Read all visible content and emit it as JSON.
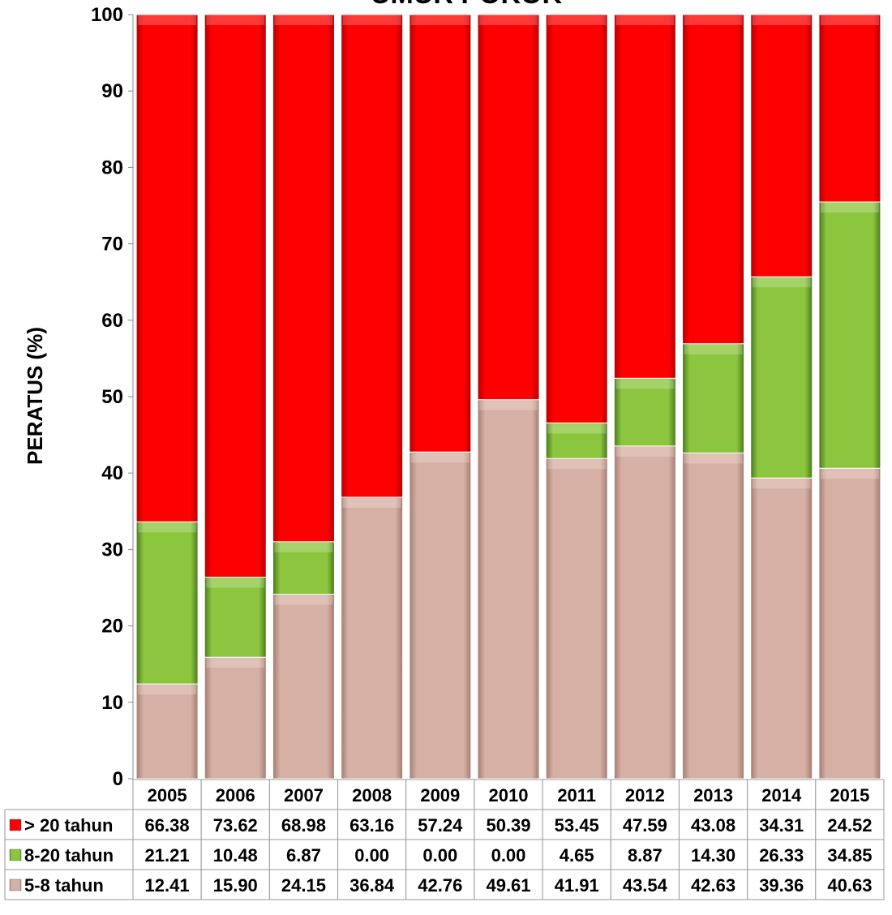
{
  "chart_data": {
    "type": "bar",
    "stacked": true,
    "title": "UMUR POKOK",
    "xlabel": "",
    "ylabel": "PERATUS (%)",
    "ylim": [
      0,
      100
    ],
    "yticks": [
      0,
      10,
      20,
      30,
      40,
      50,
      60,
      70,
      80,
      90,
      100
    ],
    "grid": false,
    "legend": "data-table-left",
    "categories": [
      "2005",
      "2006",
      "2007",
      "2008",
      "2009",
      "2010",
      "2011",
      "2012",
      "2013",
      "2014",
      "2015"
    ],
    "series": [
      {
        "name": "5-8 tahun",
        "color": "#cfa79b",
        "values": [
          12.41,
          15.9,
          24.15,
          36.84,
          42.76,
          49.61,
          41.91,
          43.54,
          42.63,
          39.36,
          40.63
        ],
        "labels": [
          "12.41",
          "15.90",
          "24.15",
          "36.84",
          "42.76",
          "49.61",
          "41.91",
          "43.54",
          "42.63",
          "39.36",
          "40.63"
        ]
      },
      {
        "name": "8-20 tahun",
        "color": "#7fbf3a",
        "values": [
          21.21,
          10.48,
          6.87,
          0.0,
          0.0,
          0.0,
          4.65,
          8.87,
          14.3,
          26.33,
          34.85
        ],
        "labels": [
          "21.21",
          "10.48",
          "6.87",
          "0.00",
          "0.00",
          "0.00",
          "4.65",
          "8.87",
          "14.30",
          "26.33",
          "34.85"
        ]
      },
      {
        "name": "> 20 tahun",
        "color": "#ff0000",
        "values": [
          66.38,
          73.62,
          68.98,
          63.16,
          57.24,
          50.39,
          53.45,
          47.59,
          43.08,
          34.31,
          24.52
        ],
        "labels": [
          "66.38",
          "73.62",
          "68.98",
          "63.16",
          "57.24",
          "50.39",
          "53.45",
          "47.59",
          "43.08",
          "34.31",
          "24.52"
        ]
      }
    ],
    "table_row_order": [
      "> 20 tahun",
      "8-20 tahun",
      "5-8 tahun"
    ]
  }
}
